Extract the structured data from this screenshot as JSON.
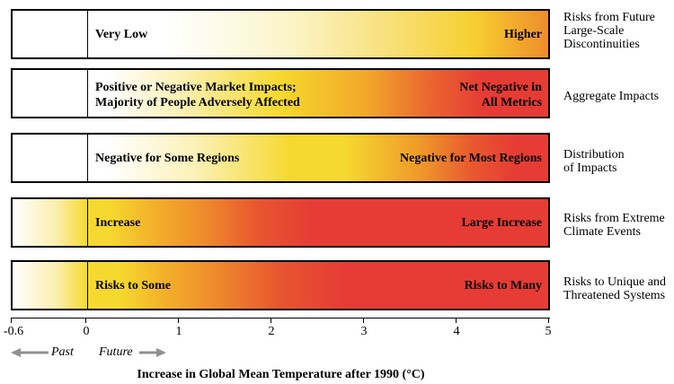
{
  "rows": [
    {
      "left": [
        "Very Low"
      ],
      "right": [
        "Higher"
      ],
      "description": [
        "Risks from Future",
        "Large-Scale",
        "Discontinuities"
      ]
    },
    {
      "left": [
        "Positive or Negative Market Impacts;",
        "Majority of People Adversely Affected"
      ],
      "right": [
        "Net Negative in",
        "All Metrics"
      ],
      "description": [
        "Aggregate Impacts"
      ]
    },
    {
      "left": [
        "Negative for Some Regions"
      ],
      "right": [
        "Negative for Most Regions"
      ],
      "description": [
        "Distribution",
        "of Impacts"
      ]
    },
    {
      "left": [
        "Increase"
      ],
      "right": [
        "Large Increase"
      ],
      "description": [
        "Risks from Extreme",
        "Climate Events"
      ]
    },
    {
      "left": [
        "Risks to Some"
      ],
      "right": [
        "Risks to Many"
      ],
      "description": [
        "Risks to Unique and",
        "Threatened Systems"
      ]
    }
  ],
  "axis": {
    "ticks": [
      "-0.6",
      "0",
      "1",
      "2",
      "3",
      "4",
      "5"
    ],
    "past_label": "Past",
    "future_label": "Future",
    "title": "Increase in Global Mean Temperature after 1990 (°C)"
  },
  "colors": {
    "white": "#ffffff",
    "yellow": "#f6d92e",
    "orange": "#ee8d2b",
    "red": "#e63c35"
  }
}
